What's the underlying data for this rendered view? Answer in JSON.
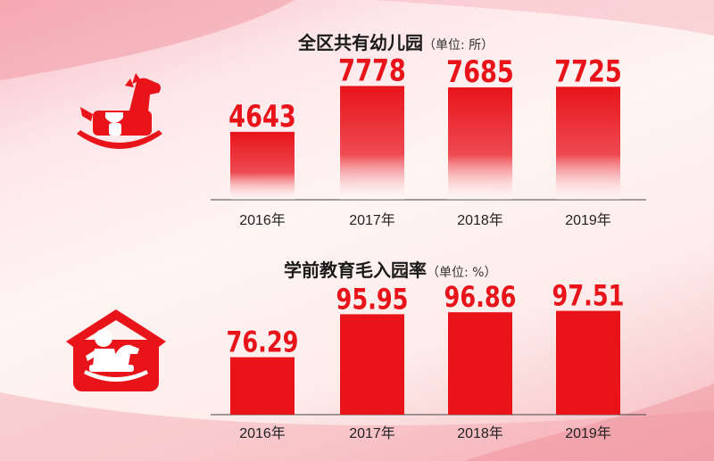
{
  "chart_data": [
    {
      "type": "bar",
      "title": "全区共有幼儿园",
      "unit": "（单位: 所）",
      "categories": [
        "2016年",
        "2017年",
        "2018年",
        "2019年"
      ],
      "values": [
        4643,
        7778,
        7685,
        7725
      ],
      "value_labels": [
        "4643",
        "7778",
        "7685",
        "7725"
      ],
      "ylim": [
        0,
        10000
      ],
      "bar_style": "gradient-fade",
      "color": "#e8141a"
    },
    {
      "type": "bar",
      "title": "学前教育毛入园率",
      "unit": "（单位: %）",
      "categories": [
        "2016年",
        "2017年",
        "2018年",
        "2019年"
      ],
      "values": [
        76.29,
        95.95,
        96.86,
        97.51
      ],
      "value_labels": [
        "76.29",
        "95.95",
        "96.86",
        "97.51"
      ],
      "ylim": [
        50,
        110
      ],
      "bar_style": "solid",
      "color": "#e8141a"
    }
  ],
  "icons": {
    "top": "rocking-horse-icon",
    "bottom": "house-child-on-horse-icon"
  }
}
